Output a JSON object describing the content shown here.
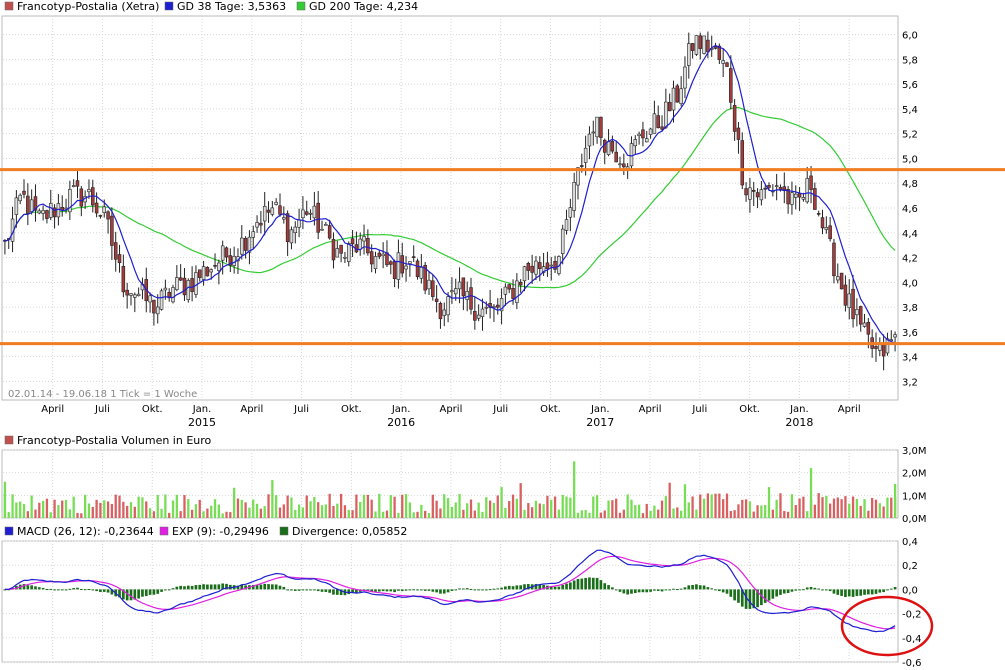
{
  "price_panel": {
    "legend": [
      {
        "label": "Francotyp-Postalia (Xetra)",
        "color": "#c0504d"
      },
      {
        "label": "GD 38 Tage: 3,5363",
        "color": "#1f1fd0"
      },
      {
        "label": "GD 200 Tage: 4,234",
        "color": "#33cc33"
      }
    ],
    "range_note": "02.01.14 - 19.06.18   1 Tick = 1 Woche",
    "yticks": [
      "6,0",
      "5,8",
      "5,6",
      "5,4",
      "5,2",
      "5,0",
      "4,8",
      "4,6",
      "4,4",
      "4,2",
      "4,0",
      "3,8",
      "3,6",
      "3,4",
      "3,2"
    ],
    "month_labels": [
      "April",
      "Juli",
      "Okt.",
      "Jan.",
      "April",
      "Juli",
      "Okt.",
      "Jan.",
      "April",
      "Juli",
      "Okt.",
      "Jan.",
      "April",
      "Juli",
      "Okt.",
      "Jan.",
      "April"
    ],
    "year_labels": [
      "2015",
      "2016",
      "2017",
      "2018"
    ],
    "horizontal_lines": [
      4.91,
      3.505
    ],
    "line_color": "#f07d22"
  },
  "volume_panel": {
    "legend": [
      {
        "label": "Francotyp-Postalia Volumen in Euro",
        "color": "#c0504d"
      }
    ],
    "yticks": [
      "3,0M",
      "2,0M",
      "1,0M",
      "0,0M"
    ]
  },
  "macd_panel": {
    "legend": [
      {
        "label": "MACD (26, 12): -0,23644",
        "color": "#1f1fd0"
      },
      {
        "label": "EXP (9): -0,29496",
        "color": "#e020e0"
      },
      {
        "label": "Divergence: 0,05852",
        "color": "#1a6e1a"
      }
    ],
    "yticks": [
      "0,4",
      "0,2",
      "0,0",
      "-0,2",
      "-0,4",
      "-0,6"
    ],
    "annotation_color": "#dd1111"
  },
  "chart_data": [
    {
      "type": "candlestick",
      "title": "Francotyp-Postalia (Xetra)",
      "period": "02.01.14 - 19.06.18",
      "interval": "1 week",
      "ylim": [
        3.05,
        6.15
      ],
      "close_approx": [
        [
          "2014-01",
          4.3
        ],
        [
          "2014-02",
          4.7
        ],
        [
          "2014-03",
          4.5
        ],
        [
          "2014-04",
          4.6
        ],
        [
          "2014-05",
          4.7
        ],
        [
          "2014-06",
          4.7
        ],
        [
          "2014-07",
          4.5
        ],
        [
          "2014-08",
          4.0
        ],
        [
          "2014-09",
          3.9
        ],
        [
          "2014-10",
          3.8
        ],
        [
          "2014-11",
          3.95
        ],
        [
          "2014-12",
          4.0
        ],
        [
          "2015-01",
          4.1
        ],
        [
          "2015-02",
          4.2
        ],
        [
          "2015-03",
          4.3
        ],
        [
          "2015-04",
          4.5
        ],
        [
          "2015-05",
          4.6
        ],
        [
          "2015-06",
          4.4
        ],
        [
          "2015-07",
          4.6
        ],
        [
          "2015-08",
          4.4
        ],
        [
          "2015-09",
          4.2
        ],
        [
          "2015-10",
          4.3
        ],
        [
          "2015-11",
          4.2
        ],
        [
          "2015-12",
          4.1
        ],
        [
          "2016-01",
          4.2
        ],
        [
          "2016-02",
          4.0
        ],
        [
          "2016-03",
          3.8
        ],
        [
          "2016-04",
          3.9
        ],
        [
          "2016-05",
          3.8
        ],
        [
          "2016-06",
          3.75
        ],
        [
          "2016-07",
          3.9
        ],
        [
          "2016-08",
          4.1
        ],
        [
          "2016-09",
          4.15
        ],
        [
          "2016-10",
          4.2
        ],
        [
          "2016-11",
          4.8
        ],
        [
          "2016-12",
          5.3
        ],
        [
          "2017-01",
          5.1
        ],
        [
          "2017-02",
          5.0
        ],
        [
          "2017-03",
          5.2
        ],
        [
          "2017-04",
          5.3
        ],
        [
          "2017-05",
          5.5
        ],
        [
          "2017-06",
          5.95
        ],
        [
          "2017-07",
          5.9
        ],
        [
          "2017-08",
          5.7
        ],
        [
          "2017-09",
          4.8
        ],
        [
          "2017-10",
          4.7
        ],
        [
          "2017-11",
          4.8
        ],
        [
          "2017-12",
          4.6
        ],
        [
          "2018-01",
          4.8
        ],
        [
          "2018-02",
          4.3
        ],
        [
          "2018-03",
          3.9
        ],
        [
          "2018-04",
          3.6
        ],
        [
          "2018-05",
          3.4
        ],
        [
          "2018-06",
          3.55
        ]
      ],
      "series": [
        {
          "name": "GD 38 Tage",
          "last": 3.5363
        },
        {
          "name": "GD 200 Tage",
          "last": 4.234
        }
      ]
    },
    {
      "type": "bar",
      "title": "Francotyp-Postalia Volumen in Euro",
      "ylim": [
        0,
        3.0
      ],
      "unit": "M",
      "notable_values": [
        {
          "x": "2014-01",
          "y": 1.6
        },
        {
          "x": "2016-11",
          "y": 2.5
        },
        {
          "x": "2018-01",
          "y": 2.2
        },
        {
          "x": "2018-06",
          "y": 1.5
        }
      ]
    },
    {
      "type": "line",
      "title": "MACD",
      "ylim": [
        -0.6,
        0.4
      ],
      "series": [
        {
          "name": "MACD (26, 12)",
          "last": -0.23644
        },
        {
          "name": "EXP (9)",
          "last": -0.29496
        },
        {
          "name": "Divergence",
          "last": 0.05852
        }
      ]
    }
  ]
}
